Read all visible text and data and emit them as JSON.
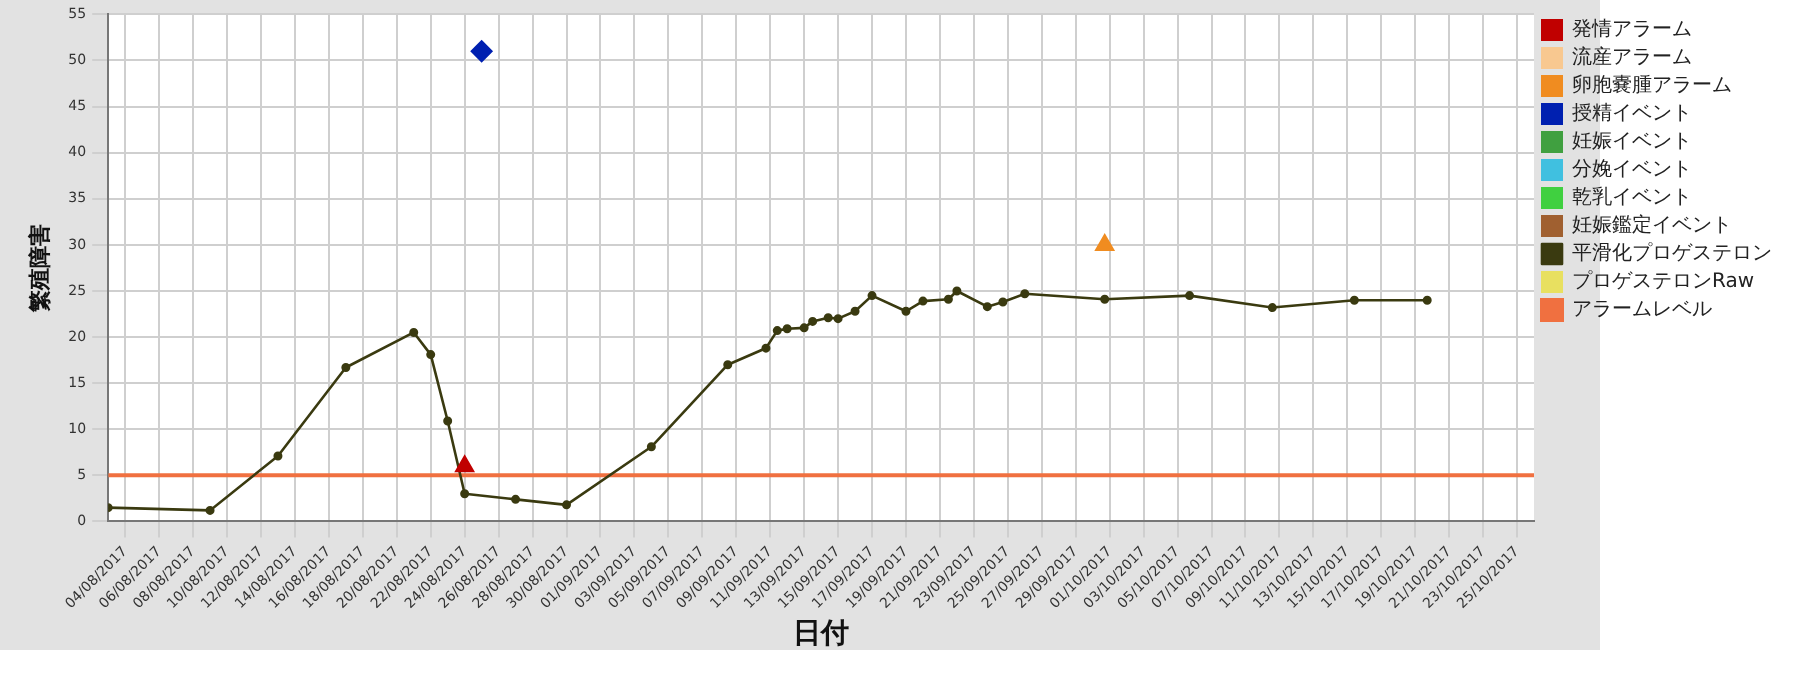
{
  "chart_data": {
    "type": "line",
    "xlabel": "日付",
    "ylabel": "繁殖障害",
    "xlim": [
      "2017-08-03",
      "2017-10-26"
    ],
    "ylim": [
      0,
      55
    ],
    "yticks": [
      0,
      5,
      10,
      15,
      20,
      25,
      30,
      35,
      40,
      45,
      50,
      55
    ],
    "xticks": [
      {
        "value": "2017-08-04",
        "label": "04/08/2017"
      },
      {
        "value": "2017-08-06",
        "label": "06/08/2017"
      },
      {
        "value": "2017-08-08",
        "label": "08/08/2017"
      },
      {
        "value": "2017-08-10",
        "label": "10/08/2017"
      },
      {
        "value": "2017-08-12",
        "label": "12/08/2017"
      },
      {
        "value": "2017-08-14",
        "label": "14/08/2017"
      },
      {
        "value": "2017-08-16",
        "label": "16/08/2017"
      },
      {
        "value": "2017-08-18",
        "label": "18/08/2017"
      },
      {
        "value": "2017-08-20",
        "label": "20/08/2017"
      },
      {
        "value": "2017-08-22",
        "label": "22/08/2017"
      },
      {
        "value": "2017-08-24",
        "label": "24/08/2017"
      },
      {
        "value": "2017-08-26",
        "label": "26/08/2017"
      },
      {
        "value": "2017-08-28",
        "label": "28/08/2017"
      },
      {
        "value": "2017-08-30",
        "label": "30/08/2017"
      },
      {
        "value": "2017-09-01",
        "label": "01/09/2017"
      },
      {
        "value": "2017-09-03",
        "label": "03/09/2017"
      },
      {
        "value": "2017-09-05",
        "label": "05/09/2017"
      },
      {
        "value": "2017-09-07",
        "label": "07/09/2017"
      },
      {
        "value": "2017-09-09",
        "label": "09/09/2017"
      },
      {
        "value": "2017-09-11",
        "label": "11/09/2017"
      },
      {
        "value": "2017-09-13",
        "label": "13/09/2017"
      },
      {
        "value": "2017-09-15",
        "label": "15/09/2017"
      },
      {
        "value": "2017-09-17",
        "label": "17/09/2017"
      },
      {
        "value": "2017-09-19",
        "label": "19/09/2017"
      },
      {
        "value": "2017-09-21",
        "label": "21/09/2017"
      },
      {
        "value": "2017-09-23",
        "label": "23/09/2017"
      },
      {
        "value": "2017-09-25",
        "label": "25/09/2017"
      },
      {
        "value": "2017-09-27",
        "label": "27/09/2017"
      },
      {
        "value": "2017-09-29",
        "label": "29/09/2017"
      },
      {
        "value": "2017-10-01",
        "label": "01/10/2017"
      },
      {
        "value": "2017-10-03",
        "label": "03/10/2017"
      },
      {
        "value": "2017-10-05",
        "label": "05/10/2017"
      },
      {
        "value": "2017-10-07",
        "label": "07/10/2017"
      },
      {
        "value": "2017-10-09",
        "label": "09/10/2017"
      },
      {
        "value": "2017-10-11",
        "label": "11/10/2017"
      },
      {
        "value": "2017-10-13",
        "label": "13/10/2017"
      },
      {
        "value": "2017-10-15",
        "label": "15/10/2017"
      },
      {
        "value": "2017-10-17",
        "label": "17/10/2017"
      },
      {
        "value": "2017-10-19",
        "label": "19/10/2017"
      },
      {
        "value": "2017-10-21",
        "label": "21/10/2017"
      },
      {
        "value": "2017-10-23",
        "label": "23/10/2017"
      },
      {
        "value": "2017-10-25",
        "label": "25/10/2017"
      }
    ],
    "grid": true,
    "legend": "right",
    "series": [
      {
        "name": "発情アラーム",
        "type": "scatter",
        "marker": "triangle",
        "color": "#c00000",
        "x": [
          "2017-08-24"
        ],
        "values": [
          6
        ]
      },
      {
        "name": "流産アラーム",
        "type": "scatter",
        "marker": "triangle",
        "color": "#f8c890"
      },
      {
        "name": "卵胞嚢腫アラーム",
        "type": "scatter",
        "marker": "triangle",
        "color": "#f08c20",
        "x": [
          "2017-09-30T17:00"
        ],
        "values": [
          30
        ]
      },
      {
        "name": "授精イベント",
        "type": "scatter",
        "marker": "diamond",
        "color": "#0020b0",
        "x": [
          "2017-08-25"
        ],
        "values": [
          51
        ]
      },
      {
        "name": "妊娠イベント",
        "type": "scatter",
        "marker": "circle",
        "color": "#40a040"
      },
      {
        "name": "分娩イベント",
        "type": "scatter",
        "marker": "circle",
        "color": "#40c0e0"
      },
      {
        "name": "乾乳イベント",
        "type": "scatter",
        "marker": "circle",
        "color": "#40d040"
      },
      {
        "name": "妊娠鑑定イベント",
        "type": "scatter",
        "marker": "circle",
        "color": "#a06030"
      },
      {
        "name": "平滑化プロゲステロン",
        "marker": "circle",
        "color": "#3a3a10",
        "x": [
          "2017-08-03",
          "2017-08-09",
          "2017-08-13",
          "2017-08-17",
          "2017-08-21",
          "2017-08-22",
          "2017-08-23",
          "2017-08-24",
          "2017-08-27",
          "2017-08-30",
          "2017-09-04",
          "2017-09-08T12:00",
          "2017-09-10T18:00",
          "2017-09-11T10:00",
          "2017-09-12",
          "2017-09-13",
          "2017-09-13T12:00",
          "2017-09-14T10:00",
          "2017-09-15",
          "2017-09-16",
          "2017-09-17",
          "2017-09-19",
          "2017-09-20",
          "2017-09-21T12:00",
          "2017-09-22",
          "2017-09-23T19:00",
          "2017-09-24T17:00",
          "2017-09-26",
          "2017-09-30T17:00",
          "2017-10-05T17:00",
          "2017-10-10T14:00",
          "2017-10-15T10:00",
          "2017-10-19T17:00"
        ],
        "values": [
          1.5,
          1.2,
          7.1,
          16.7,
          20.5,
          18.1,
          10.9,
          3.0,
          2.4,
          1.8,
          8.1,
          17.0,
          18.8,
          20.7,
          20.9,
          21.0,
          21.7,
          22.1,
          22.0,
          22.8,
          24.5,
          22.8,
          23.9,
          24.1,
          25.0,
          23.3,
          23.8,
          24.7,
          24.1,
          24.5,
          23.2,
          24.0,
          24.0
        ]
      },
      {
        "name": "プロゲステロンRaw",
        "type": "scatter",
        "marker": "circle",
        "color": "#e8e060"
      }
    ],
    "ref_lines": [
      {
        "axis": "y",
        "value": 5,
        "label": "アラームレベル",
        "color": "#f07040"
      }
    ]
  }
}
